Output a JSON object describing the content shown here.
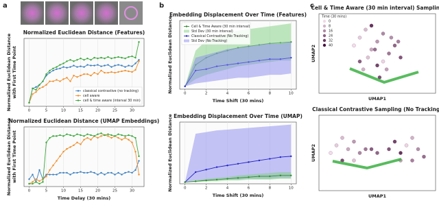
{
  "panel_labels": [
    "a",
    "b",
    "c"
  ],
  "chart_data": [
    {
      "type": "line",
      "title": "Normalized Euclidean Distance (Features)",
      "ylabel": [
        "Normalized Euclidean Distance",
        "with First Time Point"
      ],
      "x": [
        0,
        1,
        2,
        3,
        4,
        5,
        6,
        7,
        8,
        9,
        10,
        11,
        12,
        13,
        14,
        15,
        16,
        17,
        18,
        19,
        20,
        21,
        22,
        23,
        24,
        25,
        26,
        27,
        28,
        29,
        30,
        31,
        32
      ],
      "xlim": [
        -1.5,
        33.5
      ],
      "ylim": [
        -0.05,
        0.9
      ],
      "xticks": [
        0,
        5,
        10,
        15,
        20,
        25,
        30
      ],
      "grid": true,
      "legend": "lower right",
      "series": [
        {
          "name": "classical contrastive (no tracking)",
          "color": "#3a7ebf",
          "values": [
            0,
            0.2,
            0.22,
            0.25,
            0.3,
            0.38,
            0.42,
            0.45,
            0.47,
            0.48,
            0.5,
            0.49,
            0.5,
            0.52,
            0.5,
            0.51,
            0.5,
            0.53,
            0.52,
            0.52,
            0.53,
            0.51,
            0.52,
            0.53,
            0.5,
            0.52,
            0.53,
            0.52,
            0.5,
            0.52,
            0.51,
            0.55,
            0.6
          ]
        },
        {
          "name": "cell aware",
          "color": "#f28c28",
          "values": [
            0,
            0.12,
            0.15,
            0.2,
            0.22,
            0.25,
            0.3,
            0.3,
            0.32,
            0.3,
            0.33,
            0.35,
            0.3,
            0.38,
            0.36,
            0.38,
            0.4,
            0.4,
            0.38,
            0.42,
            0.4,
            0.45,
            0.42,
            0.42,
            0.43,
            0.42,
            0.43,
            0.44,
            0.45,
            0.44,
            0.43,
            0.46,
            0.58
          ]
        },
        {
          "name": "cell & time aware (interval 30 min)",
          "color": "#3aa63a",
          "values": [
            0,
            0.2,
            0.18,
            0.25,
            0.3,
            0.4,
            0.45,
            0.48,
            0.5,
            0.53,
            0.55,
            0.58,
            0.6,
            0.58,
            0.6,
            0.62,
            0.6,
            0.62,
            0.6,
            0.63,
            0.62,
            0.63,
            0.62,
            0.64,
            0.62,
            0.63,
            0.64,
            0.63,
            0.62,
            0.64,
            0.65,
            0.63,
            0.85
          ]
        }
      ]
    },
    {
      "type": "line",
      "title": "Normalized Euclidean Distance (UMAP Embeddings)",
      "ylabel": [
        "Normalized Euclidean Distance",
        "with First Time Point"
      ],
      "xlabel": "Time Delay (30 mins)",
      "x": [
        0,
        1,
        2,
        3,
        4,
        5,
        6,
        7,
        8,
        9,
        10,
        11,
        12,
        13,
        14,
        15,
        16,
        17,
        18,
        19,
        20,
        21,
        22,
        23,
        24,
        25,
        26,
        27,
        28,
        29,
        30,
        31,
        32
      ],
      "xlim": [
        -1.5,
        33.5
      ],
      "ylim": [
        -0.03,
        0.62
      ],
      "xticks": [
        0,
        5,
        10,
        15,
        20,
        25,
        30
      ],
      "grid": true,
      "series": [
        {
          "color": "#3a7ebf",
          "values": [
            0.05,
            0.1,
            0.02,
            0.15,
            0.05,
            0.1,
            0.1,
            0.1,
            0.1,
            0.12,
            0.12,
            0.12,
            0.1,
            0.12,
            0.12,
            0.13,
            0.12,
            0.12,
            0.13,
            0.12,
            0.1,
            0.12,
            0.1,
            0.12,
            0.12,
            0.1,
            0.12,
            0.1,
            0.12,
            0.13,
            0.12,
            0.15,
            0.25
          ]
        },
        {
          "color": "#f28c28",
          "values": [
            0,
            0.02,
            0.05,
            0.03,
            0.05,
            0.08,
            0.15,
            0.2,
            0.25,
            0.3,
            0.35,
            0.38,
            0.4,
            0.42,
            0.45,
            0.43,
            0.48,
            0.5,
            0.48,
            0.52,
            0.5,
            0.52,
            0.53,
            0.52,
            0.5,
            0.52,
            0.5,
            0.48,
            0.5,
            0.48,
            0.45,
            0.35,
            0.1
          ]
        },
        {
          "color": "#3aa63a",
          "values": [
            0,
            0,
            0.02,
            0,
            0.02,
            0.45,
            0.5,
            0.52,
            0.52,
            0.53,
            0.52,
            0.54,
            0.53,
            0.52,
            0.54,
            0.53,
            0.52,
            0.54,
            0.53,
            0.52,
            0.54,
            0.55,
            0.53,
            0.54,
            0.53,
            0.52,
            0.54,
            0.53,
            0.52,
            0.53,
            0.52,
            0.5,
            0.3
          ]
        }
      ]
    },
    {
      "type": "line",
      "title": "Embedding Displacement Over Time (Features)",
      "ylabel": "Normalized Euclidean Distance",
      "xlabel": "Time Shift (30 mins)",
      "x": [
        0,
        1,
        2,
        3,
        4,
        5,
        6,
        7,
        8,
        9,
        10
      ],
      "xlim": [
        -0.5,
        10.5
      ],
      "ylim": [
        -0.02,
        0.46
      ],
      "xticks": [
        0,
        2,
        4,
        6,
        8,
        10
      ],
      "grid": true,
      "legend": "upper left",
      "series": [
        {
          "name": "Cell & Time Aware (30 min interval)",
          "color": "#2e8b2e",
          "values": [
            0,
            0.15,
            0.2,
            0.23,
            0.25,
            0.27,
            0.28,
            0.29,
            0.3,
            0.305,
            0.31
          ]
        },
        {
          "name": "Std Dev (30 min interval)",
          "color": "#7fcf7f",
          "lower": [
            0,
            0.05,
            0.08,
            0.1,
            0.12,
            0.14,
            0.15,
            0.16,
            0.17,
            0.18,
            0.18
          ],
          "upper": [
            0,
            0.25,
            0.32,
            0.35,
            0.37,
            0.39,
            0.4,
            0.41,
            0.42,
            0.43,
            0.44
          ]
        },
        {
          "name": "Classical Contrastive (No Tracking)",
          "color": "#2323c8",
          "values": [
            0,
            0.11,
            0.12,
            0.14,
            0.15,
            0.16,
            0.17,
            0.18,
            0.19,
            0.19,
            0.2
          ]
        },
        {
          "name": "Std Dev (No Tracking)",
          "color": "#8a8af0",
          "lower": [
            0,
            0.02,
            0.03,
            0.04,
            0.05,
            0.06,
            0.06,
            0.07,
            0.08,
            0.08,
            0.09
          ],
          "upper": [
            0,
            0.2,
            0.22,
            0.24,
            0.26,
            0.27,
            0.28,
            0.29,
            0.3,
            0.3,
            0.31
          ]
        }
      ]
    },
    {
      "type": "line",
      "title": "Embedding Displacement Over Time (UMAP)",
      "ylabel": "Normalized Euclidean Distance",
      "xlabel": "Time Shift (30 mins)",
      "x": [
        0,
        1,
        2,
        3,
        4,
        5,
        6,
        7,
        8,
        9,
        10
      ],
      "xlim": [
        -0.5,
        10.5
      ],
      "ylim": [
        -0.02,
        0.72
      ],
      "xticks": [
        0,
        2,
        4,
        6,
        8,
        10
      ],
      "grid": true,
      "series": [
        {
          "color": "#8a8af0",
          "lower": [
            0,
            0.02,
            0.02,
            0.03,
            0.03,
            0.03,
            0.04,
            0.04,
            0.04,
            0.05,
            0.05
          ],
          "upper": [
            0,
            0.58,
            0.6,
            0.62,
            0.63,
            0.64,
            0.65,
            0.66,
            0.67,
            0.68,
            0.69
          ]
        },
        {
          "color": "#7fcf7f",
          "lower": [
            0,
            0,
            0.01,
            0.01,
            0.02,
            0.02,
            0.03,
            0.03,
            0.03,
            0.04,
            0.04
          ],
          "upper": [
            0,
            0.02,
            0.04,
            0.05,
            0.06,
            0.08,
            0.09,
            0.1,
            0.11,
            0.12,
            0.12
          ]
        },
        {
          "color": "#2323c8",
          "values": [
            0,
            0.12,
            0.15,
            0.18,
            0.2,
            0.22,
            0.24,
            0.26,
            0.28,
            0.3,
            0.31
          ]
        },
        {
          "color": "#2e8b2e",
          "values": [
            0,
            0.01,
            0.02,
            0.03,
            0.04,
            0.05,
            0.06,
            0.07,
            0.07,
            0.08,
            0.08
          ]
        }
      ]
    },
    {
      "type": "scatter",
      "title": "Cell & Time Aware (30 min interval) Sampling",
      "xlabel": "UMAP1",
      "ylabel": "UMAP2",
      "xlim": [
        0,
        1
      ],
      "ylim": [
        0,
        1
      ],
      "colorbar": {
        "title": "Time (30 mins)",
        "ticks": [
          0,
          8,
          16,
          24,
          32,
          40
        ]
      },
      "x": [
        0.3,
        0.35,
        0.4,
        0.45,
        0.5,
        0.55,
        0.6,
        0.65,
        0.7,
        0.5,
        0.45,
        0.55,
        0.38,
        0.62,
        0.48,
        0.52,
        0.42,
        0.58,
        0.68,
        0.35
      ],
      "y": [
        0.6,
        0.7,
        0.8,
        0.55,
        0.65,
        0.75,
        0.5,
        0.6,
        0.45,
        0.35,
        0.85,
        0.4,
        0.3,
        0.7,
        0.55,
        0.2,
        0.45,
        0.3,
        0.65,
        0.4
      ],
      "time": [
        0,
        4,
        8,
        12,
        16,
        20,
        24,
        28,
        32,
        36,
        40,
        2,
        10,
        18,
        26,
        34,
        6,
        14,
        22,
        30
      ]
    },
    {
      "type": "scatter",
      "title": "Classical Contrastive Sampling (No Tracking)",
      "xlabel": "UMAP1",
      "ylabel": "UMAP2",
      "xlim": [
        0,
        1
      ],
      "ylim": [
        0,
        1
      ],
      "x": [
        0.1,
        0.15,
        0.2,
        0.25,
        0.3,
        0.35,
        0.4,
        0.5,
        0.6,
        0.65,
        0.7,
        0.75,
        0.8,
        0.85,
        0.9,
        0.2,
        0.3,
        0.7,
        0.8,
        0.45
      ],
      "y": [
        0.5,
        0.6,
        0.7,
        0.55,
        0.65,
        0.5,
        0.55,
        0.5,
        0.55,
        0.65,
        0.5,
        0.6,
        0.7,
        0.55,
        0.45,
        0.4,
        0.4,
        0.4,
        0.4,
        0.55
      ],
      "time": [
        0,
        4,
        8,
        12,
        16,
        20,
        24,
        28,
        32,
        36,
        40,
        2,
        10,
        18,
        26,
        34,
        6,
        14,
        22,
        30
      ]
    }
  ]
}
